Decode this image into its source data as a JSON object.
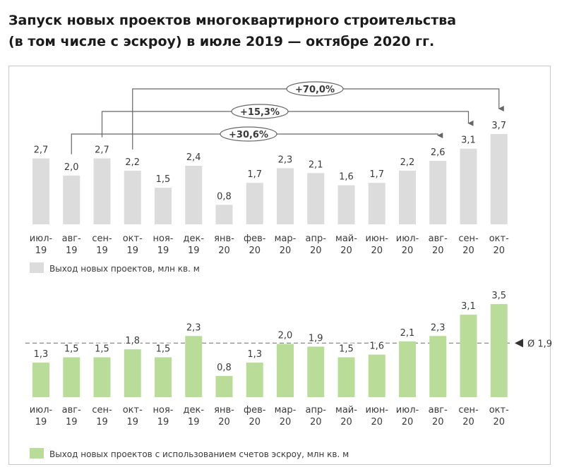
{
  "title_line1": "Запуск новых проектов многоквартирного строительства",
  "title_line2": "(в том числе с эскроу) в июле 2019 — октябре 2020 гг.",
  "colors": {
    "gray": "#dcdcdc",
    "green": "#b9dd98",
    "line": "#666666",
    "avg": "#8a8a8a"
  },
  "chart_data": [
    {
      "type": "bar",
      "categories": [
        [
          "июл-",
          "19"
        ],
        [
          "авг-",
          "19"
        ],
        [
          "сен-",
          "19"
        ],
        [
          "окт-",
          "19"
        ],
        [
          "ноя-",
          "19"
        ],
        [
          "дек-",
          "19"
        ],
        [
          "янв-",
          "20"
        ],
        [
          "фев-",
          "20"
        ],
        [
          "мар-",
          "20"
        ],
        [
          "апр-",
          "20"
        ],
        [
          "май-",
          "20"
        ],
        [
          "июн-",
          "20"
        ],
        [
          "июл-",
          "20"
        ],
        [
          "авг-",
          "20"
        ],
        [
          "сен-",
          "20"
        ],
        [
          "окт-",
          "20"
        ]
      ],
      "values": [
        2.7,
        2.0,
        2.7,
        2.2,
        1.5,
        2.4,
        0.8,
        1.7,
        2.3,
        2.1,
        1.6,
        1.7,
        2.2,
        2.6,
        3.1,
        3.7
      ],
      "value_labels": [
        "2,7",
        "2,0",
        "2,7",
        "2,2",
        "1,5",
        "2,4",
        "0,8",
        "1,7",
        "2,3",
        "2,1",
        "1,6",
        "1,7",
        "2,2",
        "2,6",
        "3,1",
        "3,7"
      ],
      "legend": "Выход новых проектов, млн кв. м",
      "annotations": [
        {
          "label": "+70,0%",
          "from": 3,
          "to": 15
        },
        {
          "label": "+15,3%",
          "from": 2,
          "to": 14
        },
        {
          "label": "+30,6%",
          "from": 1,
          "to": 13
        }
      ],
      "ylim": [
        0,
        3.7
      ]
    },
    {
      "type": "bar",
      "categories": [
        [
          "июл-",
          "19"
        ],
        [
          "авг-",
          "19"
        ],
        [
          "сен-",
          "19"
        ],
        [
          "окт-",
          "19"
        ],
        [
          "ноя-",
          "19"
        ],
        [
          "дек-",
          "19"
        ],
        [
          "янв-",
          "20"
        ],
        [
          "фев-",
          "20"
        ],
        [
          "мар-",
          "20"
        ],
        [
          "апр-",
          "20"
        ],
        [
          "май-",
          "20"
        ],
        [
          "июн-",
          "20"
        ],
        [
          "июл-",
          "20"
        ],
        [
          "авг-",
          "20"
        ],
        [
          "сен-",
          "20"
        ],
        [
          "окт-",
          "20"
        ]
      ],
      "values": [
        1.3,
        1.5,
        1.5,
        1.8,
        1.5,
        2.3,
        0.8,
        1.3,
        2.0,
        1.9,
        1.5,
        1.6,
        2.1,
        2.3,
        3.1,
        3.5
      ],
      "value_labels": [
        "1,3",
        "1,5",
        "1,5",
        "1,8",
        "1,5",
        "2,3",
        "0,8",
        "1,3",
        "2,0",
        "1,9",
        "1,5",
        "1,6",
        "2,1",
        "2,3",
        "3,1",
        "3,5"
      ],
      "legend": "Выход новых проектов с использованием счетов эскроу, млн кв. м",
      "average": {
        "value": 1.9,
        "label": "Ø 1,9"
      },
      "ylim": [
        0,
        3.5
      ]
    }
  ]
}
